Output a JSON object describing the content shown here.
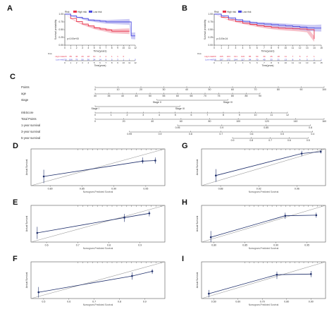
{
  "panel_labels": {
    "a": "A",
    "b": "B",
    "c": "C",
    "d": "D",
    "e": "E",
    "f": "F",
    "g": "G",
    "h": "H",
    "i": "I"
  },
  "colors": {
    "high_risk": "#e8334a",
    "low_risk": "#4a4ae0",
    "high_ci": "#f4a6b4",
    "low_ci": "#b7b3f0",
    "cal_line": "#1f2f6b",
    "ideal": "#9a9a9a"
  },
  "chart_data": [
    {
      "id": "A",
      "type": "line",
      "ylabel": "Survival probability",
      "xlabel": "Time(years)",
      "xlim": [
        0,
        12
      ],
      "ylim": [
        0,
        1
      ],
      "x_ticks": [
        0,
        1,
        2,
        3,
        4,
        5,
        6,
        7,
        8,
        9,
        10,
        11,
        12
      ],
      "y_ticks": [
        "0.00",
        "0.25",
        "0.50",
        "0.75",
        "1.00"
      ],
      "legend": {
        "title": "Risk",
        "labels": [
          "High risk",
          "Low risk"
        ]
      },
      "pvalue": "p=0.00e+00",
      "series": [
        {
          "name": "High risk",
          "x": [
            0,
            1,
            2,
            3,
            4,
            5,
            6,
            7,
            8,
            9,
            10,
            11
          ],
          "y": [
            1.0,
            0.86,
            0.76,
            0.68,
            0.62,
            0.56,
            0.52,
            0.49,
            0.45,
            0.45,
            0.45,
            0.45
          ]
        },
        {
          "name": "Low risk",
          "x": [
            0,
            1,
            2,
            3,
            4,
            5,
            6,
            7,
            8,
            9,
            10,
            11,
            11.3,
            12
          ],
          "y": [
            1.0,
            0.94,
            0.9,
            0.86,
            0.81,
            0.79,
            0.77,
            0.75,
            0.75,
            0.75,
            0.75,
            0.75,
            0.3,
            0.3
          ]
        }
      ],
      "risk_table": {
        "rows": [
          {
            "label": "High risk",
            "counts": [
              "129",
              "85",
              "46",
              "29",
              "18",
              "10",
              "4",
              "2",
              "1",
              "1",
              "0",
              "",
              ""
            ]
          },
          {
            "label": "Low risk",
            "counts": [
              "130",
              "106",
              "79",
              "50",
              "36",
              "24",
              "14",
              "9",
              "5",
              "3",
              "1",
              "1",
              "0"
            ]
          }
        ]
      }
    },
    {
      "id": "B",
      "type": "line",
      "ylabel": "Survival probability",
      "xlabel": "Time(years)",
      "xlim": [
        0,
        15
      ],
      "ylim": [
        0,
        1
      ],
      "x_ticks": [
        0,
        1,
        2,
        3,
        4,
        5,
        6,
        7,
        8,
        9,
        10,
        11,
        12,
        13,
        14,
        15
      ],
      "y_ticks": [
        "0.00",
        "0.25",
        "0.50",
        "0.75",
        "1.00"
      ],
      "legend": {
        "title": "Risk",
        "labels": [
          "High risk",
          "Low risk"
        ]
      },
      "pvalue": "p=3.00e-04",
      "series": [
        {
          "name": "High risk",
          "x": [
            0,
            1,
            2,
            3,
            4,
            5,
            6,
            7,
            8,
            9,
            10,
            11,
            12,
            13,
            14
          ],
          "y": [
            1.0,
            0.9,
            0.82,
            0.76,
            0.71,
            0.67,
            0.63,
            0.6,
            0.57,
            0.55,
            0.54,
            0.53,
            0.52,
            0.5,
            0.2
          ]
        },
        {
          "name": "Low risk",
          "x": [
            0,
            1,
            2,
            3,
            4,
            5,
            6,
            7,
            8,
            9,
            10,
            11,
            12,
            13,
            14,
            15
          ],
          "y": [
            1.0,
            0.94,
            0.88,
            0.82,
            0.77,
            0.73,
            0.7,
            0.68,
            0.66,
            0.64,
            0.62,
            0.6,
            0.58,
            0.56,
            0.55,
            0.55
          ]
        }
      ],
      "risk_table": {
        "rows": [
          {
            "label": "High risk",
            "counts": [
              "209",
              "195",
              "163",
              "131",
              "106",
              "85",
              "60",
              "39",
              "26",
              "18",
              "11",
              "7",
              "5",
              "2",
              "1",
              ""
            ]
          },
          {
            "label": "Low risk",
            "counts": [
              "208",
              "197",
              "172",
              "144",
              "117",
              "94",
              "70",
              "49",
              "33",
              "21",
              "13",
              "8",
              "4",
              "3",
              "2",
              "1"
            ]
          }
        ]
      }
    },
    {
      "id": "C",
      "type": "table",
      "subtype": "nomogram",
      "rows": [
        {
          "label": "Points",
          "ticks": [
            "0",
            "10",
            "20",
            "30",
            "40",
            "50",
            "60",
            "70",
            "80",
            "90",
            "100"
          ]
        },
        {
          "label": "age",
          "ticks": [
            "30",
            "35",
            "40",
            "45",
            "50",
            "55",
            "60",
            "65",
            "70",
            "75",
            "80",
            "85",
            "90"
          ]
        },
        {
          "label": "stage",
          "ticks": [
            "Stage II",
            "Stage IV"
          ]
        },
        {
          "label": "",
          "ticks": [
            "Stage I",
            "Stage III"
          ]
        },
        {
          "label": "riskScore",
          "ticks": [
            "0",
            "1",
            "2",
            "3",
            "4",
            "5",
            "6",
            "7",
            "8",
            "9",
            "10",
            "11",
            "12"
          ]
        },
        {
          "label": "Total Points",
          "ticks": [
            "0",
            "20",
            "40",
            "60",
            "80",
            "100",
            "120",
            "140",
            "160"
          ]
        },
        {
          "label": "1-year survival",
          "ticks": [
            "0.95",
            "0.9",
            "0.85",
            "0.8"
          ]
        },
        {
          "label": "3-year survival",
          "ticks": [
            "0.99",
            "0.9",
            "0.8",
            "0.7",
            "0.6",
            "0.5",
            "0.4"
          ]
        },
        {
          "label": "5-year survival",
          "ticks": [
            "0.9",
            "0.8",
            "0.7",
            "0.6",
            "0.5"
          ]
        }
      ]
    },
    {
      "id": "D",
      "type": "line",
      "ylabel": "Actual Survival",
      "xlabel": "Nomogram-Predicted Survival",
      "x_ticks": [
        "0.80",
        "0.85",
        "0.90",
        "0.95"
      ],
      "xlim": [
        0.77,
        0.98
      ],
      "ylim": [
        0.7,
        1.0
      ],
      "x": [
        0.79,
        0.945,
        0.965
      ],
      "y": [
        0.775,
        0.9,
        0.905
      ],
      "ci_low": [
        0.72,
        0.88,
        0.88
      ],
      "ci_high": [
        0.83,
        0.93,
        0.93
      ]
    },
    {
      "id": "E",
      "type": "line",
      "ylabel": "Actual Survival",
      "xlabel": "Nomogram-Predicted Survival",
      "x_ticks": [
        "0.6",
        "0.7",
        "0.8",
        "0.9"
      ],
      "xlim": [
        0.55,
        0.98
      ],
      "ylim": [
        0.4,
        1.0
      ],
      "x": [
        0.57,
        0.85,
        0.93
      ],
      "y": [
        0.55,
        0.8,
        0.87
      ],
      "ci_low": [
        0.45,
        0.73,
        0.82
      ],
      "ci_high": [
        0.65,
        0.86,
        0.91
      ]
    },
    {
      "id": "F",
      "type": "line",
      "ylabel": "Actual Survival",
      "xlabel": "Nomogram-Predicted Survival",
      "x_ticks": [
        "0.5",
        "0.6",
        "0.7",
        "0.8",
        "0.9"
      ],
      "xlim": [
        0.45,
        0.98
      ],
      "ylim": [
        0.3,
        1.0
      ],
      "x": [
        0.48,
        0.85,
        0.93
      ],
      "y": [
        0.42,
        0.73,
        0.82
      ],
      "ci_low": [
        0.32,
        0.66,
        0.77
      ],
      "ci_high": [
        0.52,
        0.8,
        0.86
      ]
    },
    {
      "id": "G",
      "type": "line",
      "ylabel": "Actual Survival",
      "xlabel": "Nomogram-Predicted Survival",
      "x_ticks": [
        "0.88",
        "0.92",
        "0.96"
      ],
      "xlim": [
        0.86,
        0.99
      ],
      "ylim": [
        0.8,
        1.0
      ],
      "x": [
        0.875,
        0.965,
        0.985
      ],
      "y": [
        0.855,
        0.975,
        0.985
      ],
      "ci_low": [
        0.82,
        0.96,
        0.975
      ],
      "ci_high": [
        0.89,
        0.99,
        0.995
      ]
    },
    {
      "id": "H",
      "type": "line",
      "ylabel": "Actual Survival",
      "xlabel": "Nomogram-Predicted Survival",
      "x_ticks": [
        "0.80",
        "0.85",
        "0.90",
        "0.95"
      ],
      "xlim": [
        0.78,
        0.98
      ],
      "ylim": [
        0.7,
        1.0
      ],
      "x": [
        0.795,
        0.915,
        0.965
      ],
      "y": [
        0.74,
        0.915,
        0.92
      ],
      "ci_low": [
        0.7,
        0.89,
        0.9
      ],
      "ci_high": [
        0.79,
        0.94,
        0.94
      ]
    },
    {
      "id": "I",
      "type": "line",
      "ylabel": "Actual Survival",
      "xlabel": "Nomogram-Predicted Survival",
      "x_ticks": [
        "0.50",
        "0.60",
        "0.70",
        "0.80",
        "0.90"
      ],
      "xlim": [
        0.45,
        0.96
      ],
      "ylim": [
        0.4,
        1.0
      ],
      "x": [
        0.48,
        0.76,
        0.9
      ],
      "y": [
        0.48,
        0.79,
        0.8
      ],
      "ci_low": [
        0.42,
        0.72,
        0.75
      ],
      "ci_high": [
        0.54,
        0.84,
        0.85
      ]
    }
  ]
}
